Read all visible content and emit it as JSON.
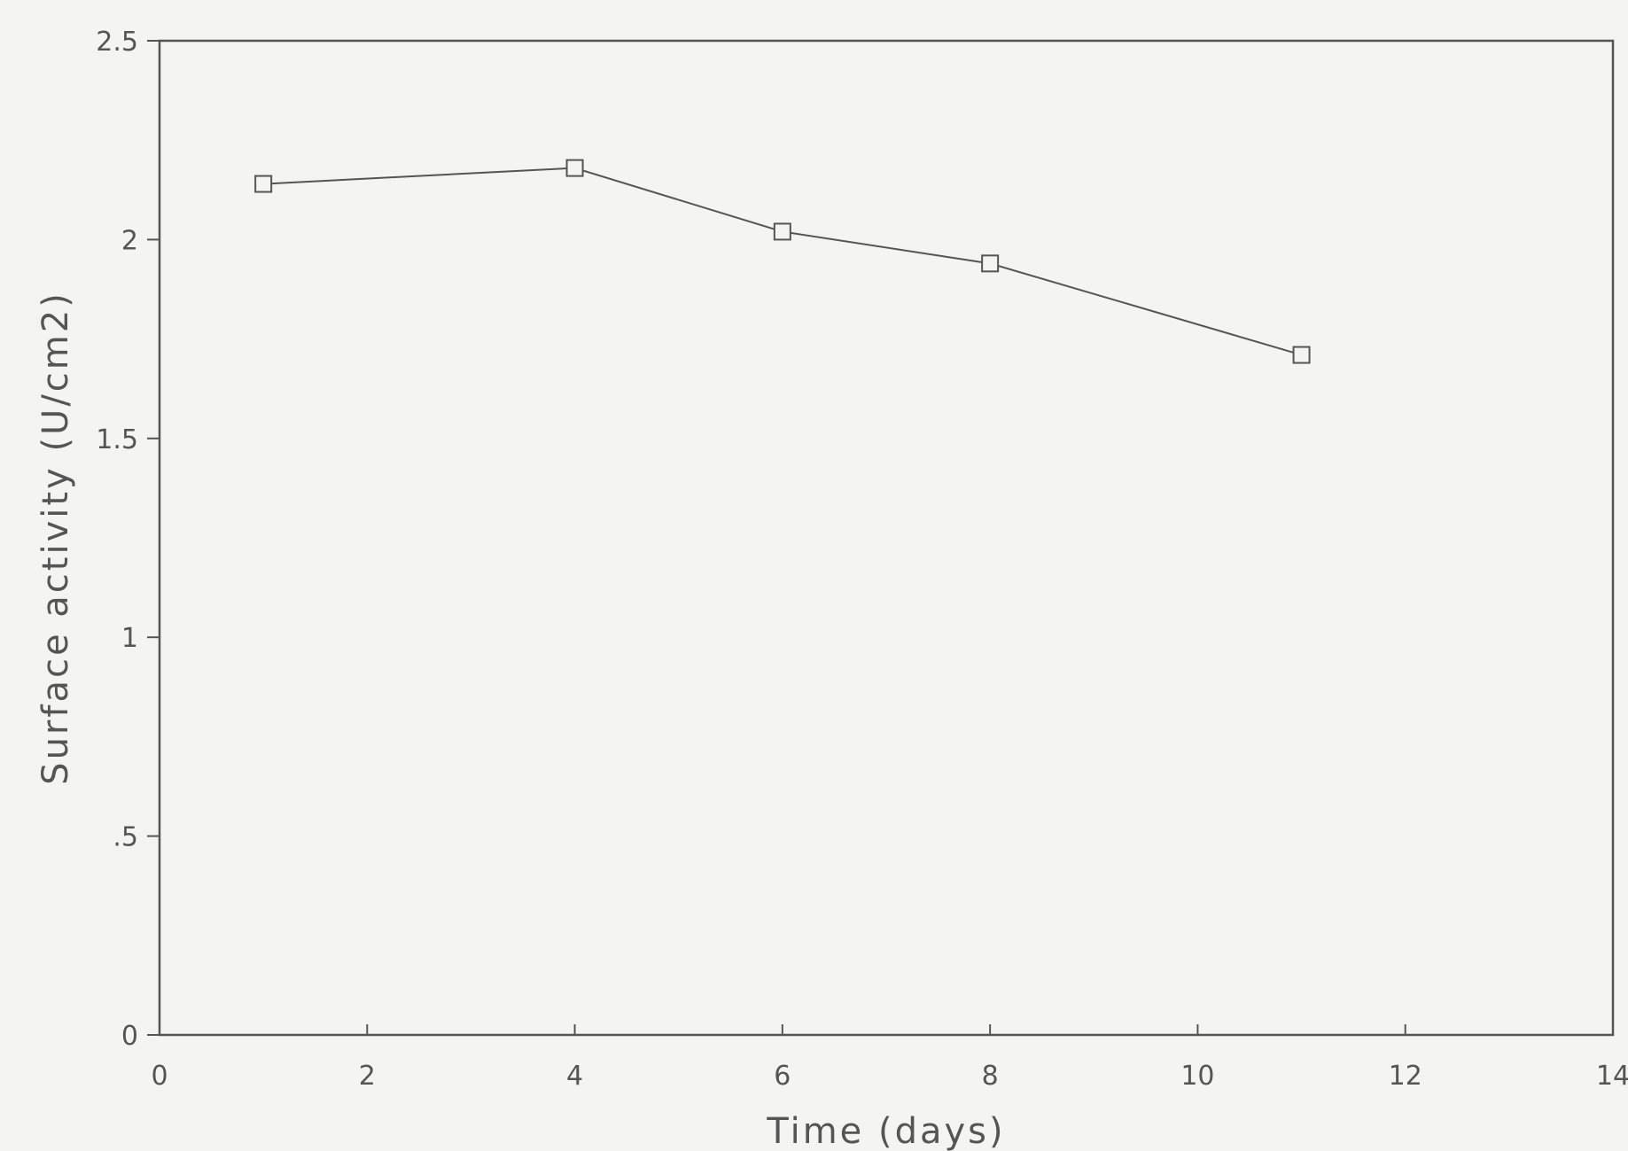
{
  "chart_data": {
    "type": "line",
    "title": "",
    "xlabel": "Time (days)",
    "ylabel": "Surface activity (U/cm2)",
    "xlim": [
      0,
      14
    ],
    "ylim": [
      0,
      2.5
    ],
    "xticks": [
      0,
      2,
      4,
      6,
      8,
      10,
      12,
      14
    ],
    "xtick_labels": [
      "0",
      "2",
      "4",
      "6",
      "8",
      "10",
      "12",
      "14"
    ],
    "yticks": [
      0,
      0.5,
      1,
      1.5,
      2,
      2.5
    ],
    "ytick_labels": [
      "0",
      ".5",
      "1",
      "1.5",
      "2",
      "2.5"
    ],
    "grid": false,
    "marker": "open-square",
    "line_color": "#555555",
    "series": [
      {
        "x": [
          1,
          4,
          6,
          8,
          11
        ],
        "y": [
          2.14,
          2.18,
          2.02,
          1.94,
          1.71
        ]
      }
    ]
  }
}
